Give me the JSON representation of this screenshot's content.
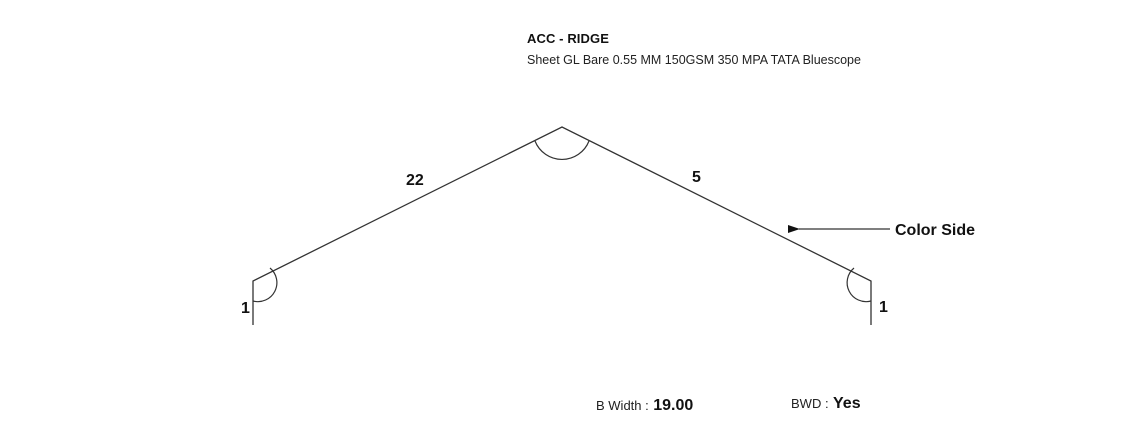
{
  "header": {
    "title": "ACC - RIDGE",
    "subtitle": "Sheet GL Bare 0.55 MM 150GSM 350 MPA TATA Bluescope"
  },
  "segments": {
    "left_hem": "1",
    "left_slope": "22",
    "right_slope": "5",
    "right_hem": "1"
  },
  "color_side": {
    "label": "Color Side"
  },
  "footer": {
    "b_width_label": "B Width :",
    "b_width_value": "19.00",
    "bwd_label": "BWD :",
    "bwd_value": "Yes"
  }
}
